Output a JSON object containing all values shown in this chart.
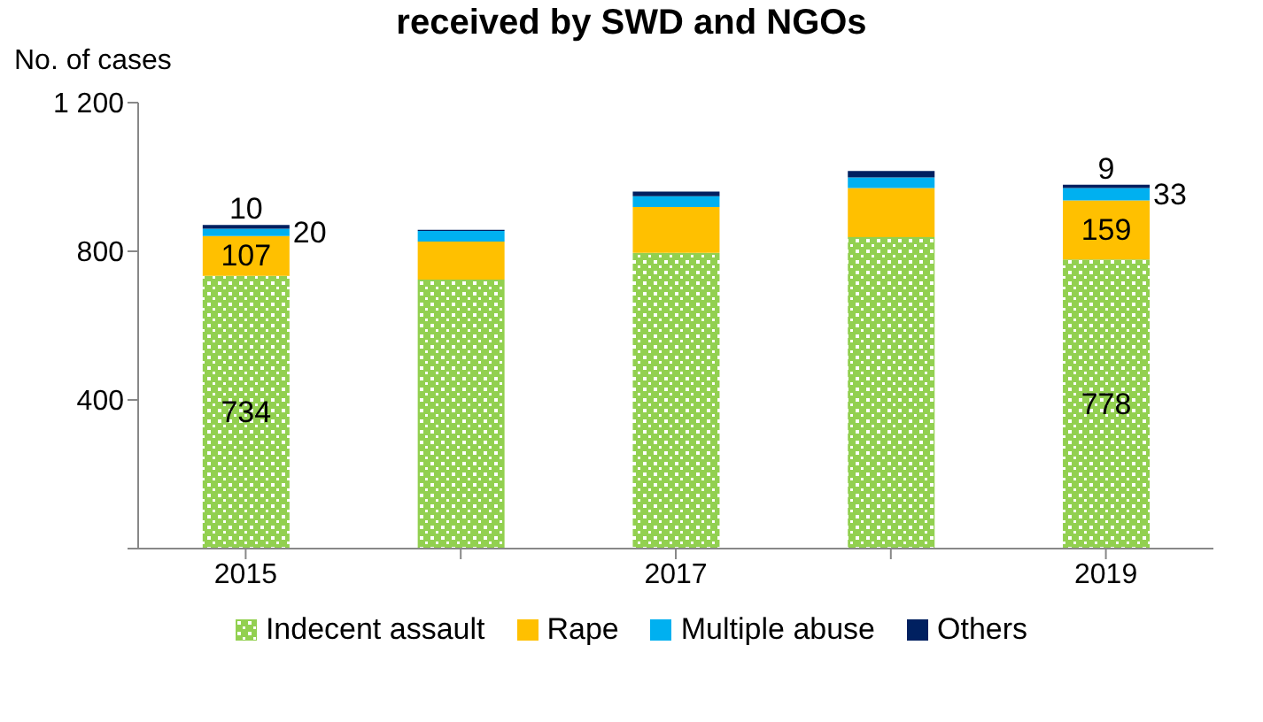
{
  "chart_data": {
    "type": "bar",
    "title": "received by SWD and NGOs",
    "ylabel": "No. of cases",
    "stacked": true,
    "categories": [
      "2015",
      null,
      "2017",
      null,
      "2019"
    ],
    "series": [
      {
        "name": "Indecent assault",
        "color": "#92d050",
        "values": [
          734,
          724,
          796,
          838,
          778
        ],
        "value_labels": [
          "734",
          null,
          null,
          null,
          "778"
        ]
      },
      {
        "name": "Rape",
        "color": "#ffc000",
        "values": [
          107,
          102,
          123,
          132,
          159
        ],
        "value_labels": [
          "107",
          null,
          null,
          null,
          "159"
        ]
      },
      {
        "name": "Multiple abuse",
        "color": "#00b0f0",
        "values": [
          20,
          29,
          29,
          29,
          33
        ],
        "value_labels": [
          "20",
          null,
          null,
          null,
          "33"
        ]
      },
      {
        "name": "Others",
        "color": "#002060",
        "values": [
          10,
          3,
          13,
          17,
          9
        ],
        "value_labels": [
          "10",
          null,
          null,
          null,
          "9"
        ]
      }
    ],
    "ylim": [
      0,
      1200
    ],
    "yticks": [
      {
        "value": 0,
        "label": null
      },
      400,
      800,
      {
        "value": 1200,
        "label": "1 200"
      }
    ],
    "grid": false,
    "legend": "bottom"
  }
}
